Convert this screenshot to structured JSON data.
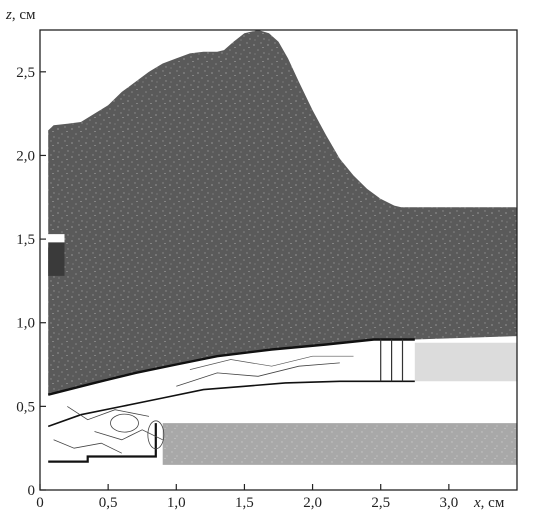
{
  "chart_data": {
    "type": "area",
    "xlabel": {
      "var": "x",
      "unit": ", см"
    },
    "ylabel": {
      "var": "z",
      "unit": ", см"
    },
    "xlim": [
      0,
      3.5
    ],
    "ylim": [
      0,
      2.75
    ],
    "x_ticks": [
      {
        "value": 0,
        "label": "0"
      },
      {
        "value": 0.5,
        "label": "0,5"
      },
      {
        "value": 1.0,
        "label": "1,0"
      },
      {
        "value": 1.5,
        "label": "1,5"
      },
      {
        "value": 2.0,
        "label": "2,0"
      },
      {
        "value": 2.5,
        "label": "2,5"
      },
      {
        "value": 3.0,
        "label": "3,0"
      }
    ],
    "y_ticks": [
      {
        "value": 0,
        "label": "0"
      },
      {
        "value": 0.5,
        "label": "0,5"
      },
      {
        "value": 1.0,
        "label": "1,0"
      },
      {
        "value": 1.5,
        "label": "1,5"
      },
      {
        "value": 2.0,
        "label": "2,0"
      },
      {
        "value": 2.5,
        "label": "2,5"
      }
    ],
    "grid": false,
    "regions": [
      {
        "id": "dark-upper-region",
        "color": "#5a5a5a",
        "outline": [
          [
            0.06,
            2.15
          ],
          [
            0.1,
            2.18
          ],
          [
            0.2,
            2.19
          ],
          [
            0.3,
            2.2
          ],
          [
            0.4,
            2.25
          ],
          [
            0.5,
            2.3
          ],
          [
            0.6,
            2.38
          ],
          [
            0.7,
            2.44
          ],
          [
            0.8,
            2.5
          ],
          [
            0.9,
            2.55
          ],
          [
            1.0,
            2.58
          ],
          [
            1.1,
            2.61
          ],
          [
            1.2,
            2.62
          ],
          [
            1.3,
            2.62
          ],
          [
            1.35,
            2.63
          ],
          [
            1.42,
            2.68
          ],
          [
            1.5,
            2.73
          ],
          [
            1.6,
            2.75
          ],
          [
            1.68,
            2.73
          ],
          [
            1.75,
            2.68
          ],
          [
            1.82,
            2.58
          ],
          [
            1.9,
            2.44
          ],
          [
            2.0,
            2.27
          ],
          [
            2.1,
            2.12
          ],
          [
            2.2,
            1.98
          ],
          [
            2.3,
            1.88
          ],
          [
            2.4,
            1.8
          ],
          [
            2.5,
            1.74
          ],
          [
            2.6,
            1.7
          ],
          [
            2.65,
            1.69
          ],
          [
            3.5,
            1.69
          ],
          [
            3.5,
            0.92
          ],
          [
            2.75,
            0.9
          ],
          [
            2.45,
            0.9
          ],
          [
            2.1,
            0.87
          ],
          [
            1.7,
            0.84
          ],
          [
            1.3,
            0.8
          ],
          [
            1.0,
            0.75
          ],
          [
            0.7,
            0.7
          ],
          [
            0.4,
            0.64
          ],
          [
            0.2,
            0.6
          ],
          [
            0.06,
            0.57
          ],
          [
            0.06,
            1.45
          ],
          [
            0.18,
            1.45
          ],
          [
            0.18,
            1.53
          ],
          [
            0.06,
            1.53
          ]
        ]
      },
      {
        "id": "light-upper-band",
        "color": "#dcdcdc",
        "outline": [
          [
            2.75,
            0.88
          ],
          [
            3.5,
            0.88
          ],
          [
            3.5,
            0.65
          ],
          [
            2.75,
            0.65
          ]
        ]
      },
      {
        "id": "light-lower-band",
        "color": "#a8a8a8",
        "outline": [
          [
            0.9,
            0.4
          ],
          [
            3.5,
            0.4
          ],
          [
            3.5,
            0.15
          ],
          [
            0.9,
            0.15
          ]
        ]
      },
      {
        "id": "dark-inlet-block",
        "color": "#3a3a3a",
        "outline": [
          [
            0.06,
            1.28
          ],
          [
            0.18,
            1.28
          ],
          [
            0.18,
            1.48
          ],
          [
            0.06,
            1.48
          ]
        ]
      }
    ]
  }
}
